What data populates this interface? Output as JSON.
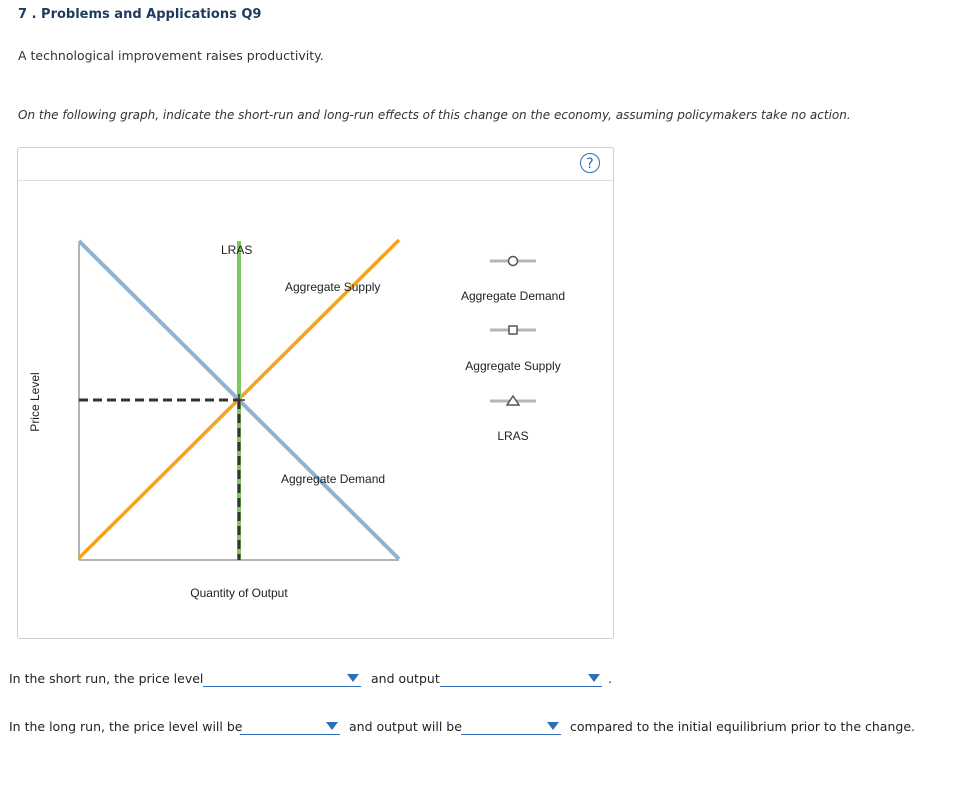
{
  "question": {
    "title": "7 . Problems and Applications Q9",
    "intro": "A technological improvement raises productivity.",
    "instruction": "On the following graph, indicate the short-run and long-run effects of this change on the economy, assuming policymakers take no action."
  },
  "graph": {
    "help_label": "?",
    "y_axis_label": "Price Level",
    "x_axis_label": "Quantity of Output",
    "curve_labels": {
      "lras": "LRAS",
      "aggregate_supply": "Aggregate Supply",
      "aggregate_demand": "Aggregate Demand"
    },
    "palette": [
      {
        "label": "Aggregate Demand",
        "marker": "circle"
      },
      {
        "label": "Aggregate Supply",
        "marker": "square"
      },
      {
        "label": "LRAS",
        "marker": "triangle"
      }
    ],
    "colors": {
      "aggregate_demand": "#8fb3d1",
      "aggregate_supply": "#f6a21e",
      "lras": "#7dc95e",
      "dashed": "#333333",
      "axis": "#9a9a9a",
      "accent": "#2f6fb5"
    }
  },
  "answers": {
    "short_run_prefix": "In the short run, the price level",
    "short_run_price_value": "",
    "and_output": "and output",
    "short_run_output_value": "",
    "period": ".",
    "long_run_prefix": "In the long run, the price level will be",
    "long_run_price_value": "",
    "and_output_will_be": "and output will be",
    "long_run_output_value": "",
    "suffix": "compared to the initial equilibrium prior to the change."
  }
}
